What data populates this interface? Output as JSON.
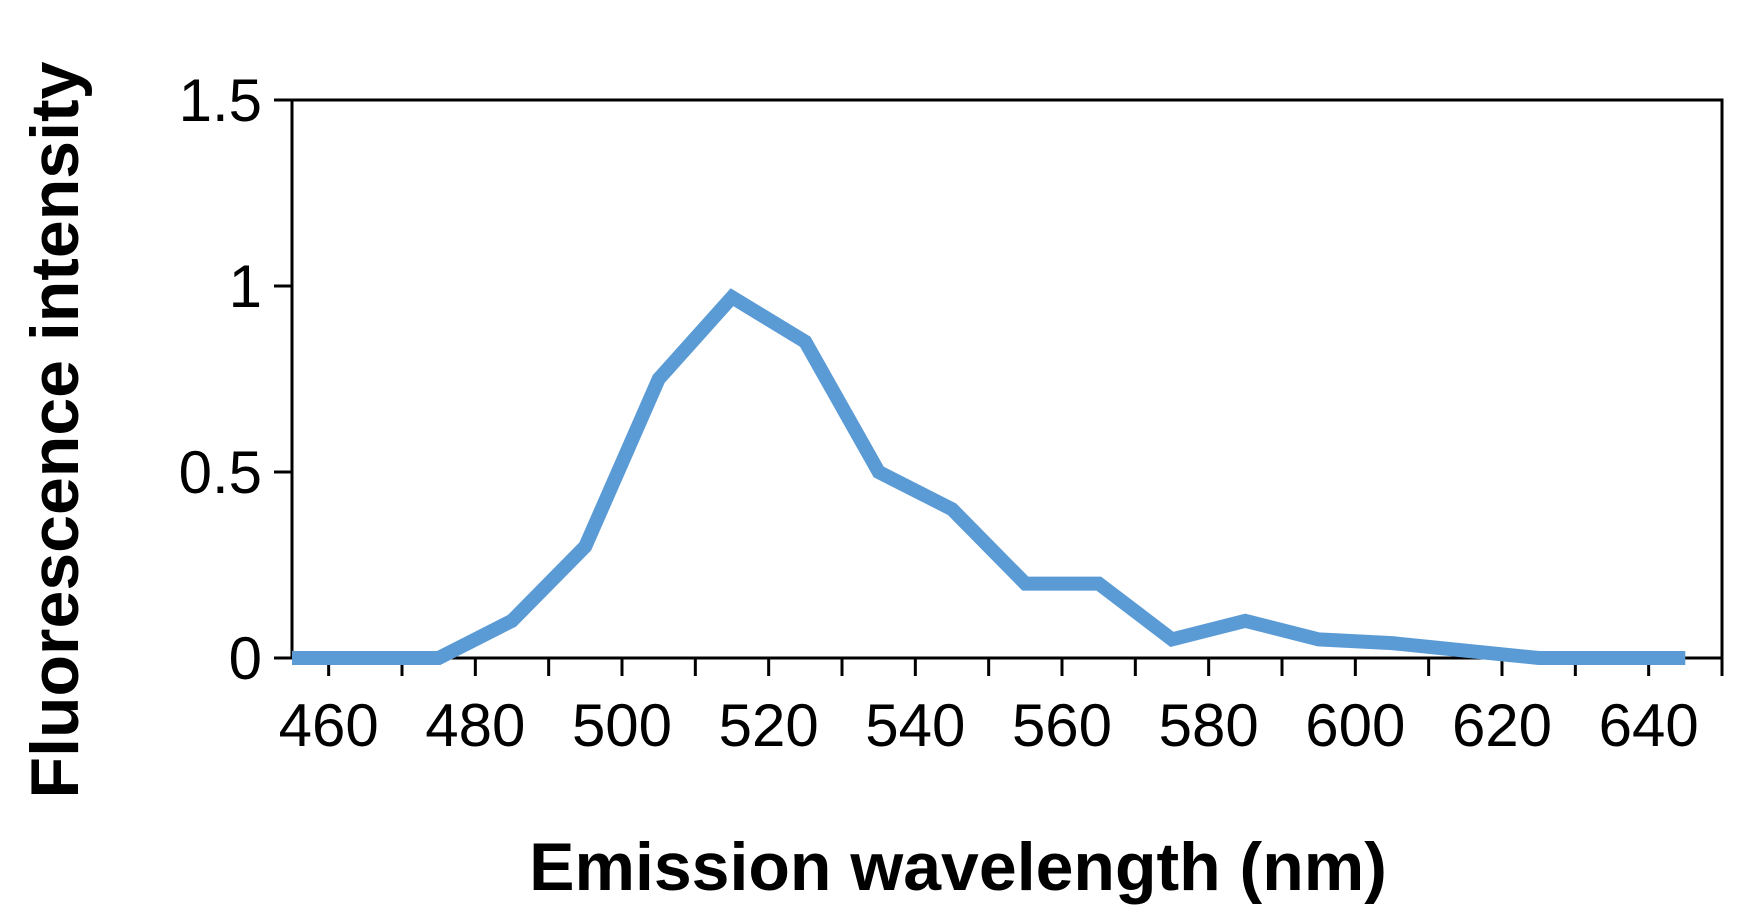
{
  "chart_data": {
    "type": "line",
    "title": "",
    "xlabel": "Emission wavelength (nm)",
    "ylabel": "Fluorescence intensity",
    "xlim": [
      455,
      650
    ],
    "ylim": [
      0,
      1.5
    ],
    "x_ticks": [
      460,
      480,
      500,
      520,
      540,
      560,
      580,
      600,
      620,
      640
    ],
    "y_ticks": [
      0,
      0.5,
      1,
      1.5
    ],
    "y_tick_labels": [
      "0",
      "0.5",
      "1",
      "1.5"
    ],
    "grid": false,
    "legend": "none",
    "series": [
      {
        "color": "#5b9bd5",
        "points": [
          {
            "x": 455,
            "y": 0
          },
          {
            "x": 465,
            "y": 0
          },
          {
            "x": 475,
            "y": 0
          },
          {
            "x": 485,
            "y": 0.1
          },
          {
            "x": 495,
            "y": 0.3
          },
          {
            "x": 505,
            "y": 0.75
          },
          {
            "x": 515,
            "y": 0.97
          },
          {
            "x": 525,
            "y": 0.85
          },
          {
            "x": 535,
            "y": 0.5
          },
          {
            "x": 545,
            "y": 0.4
          },
          {
            "x": 555,
            "y": 0.2
          },
          {
            "x": 565,
            "y": 0.2
          },
          {
            "x": 575,
            "y": 0.05
          },
          {
            "x": 585,
            "y": 0.1
          },
          {
            "x": 595,
            "y": 0.05
          },
          {
            "x": 605,
            "y": 0.04
          },
          {
            "x": 615,
            "y": 0.02
          },
          {
            "x": 625,
            "y": 0
          },
          {
            "x": 635,
            "y": 0
          },
          {
            "x": 645,
            "y": 0
          }
        ]
      }
    ]
  }
}
